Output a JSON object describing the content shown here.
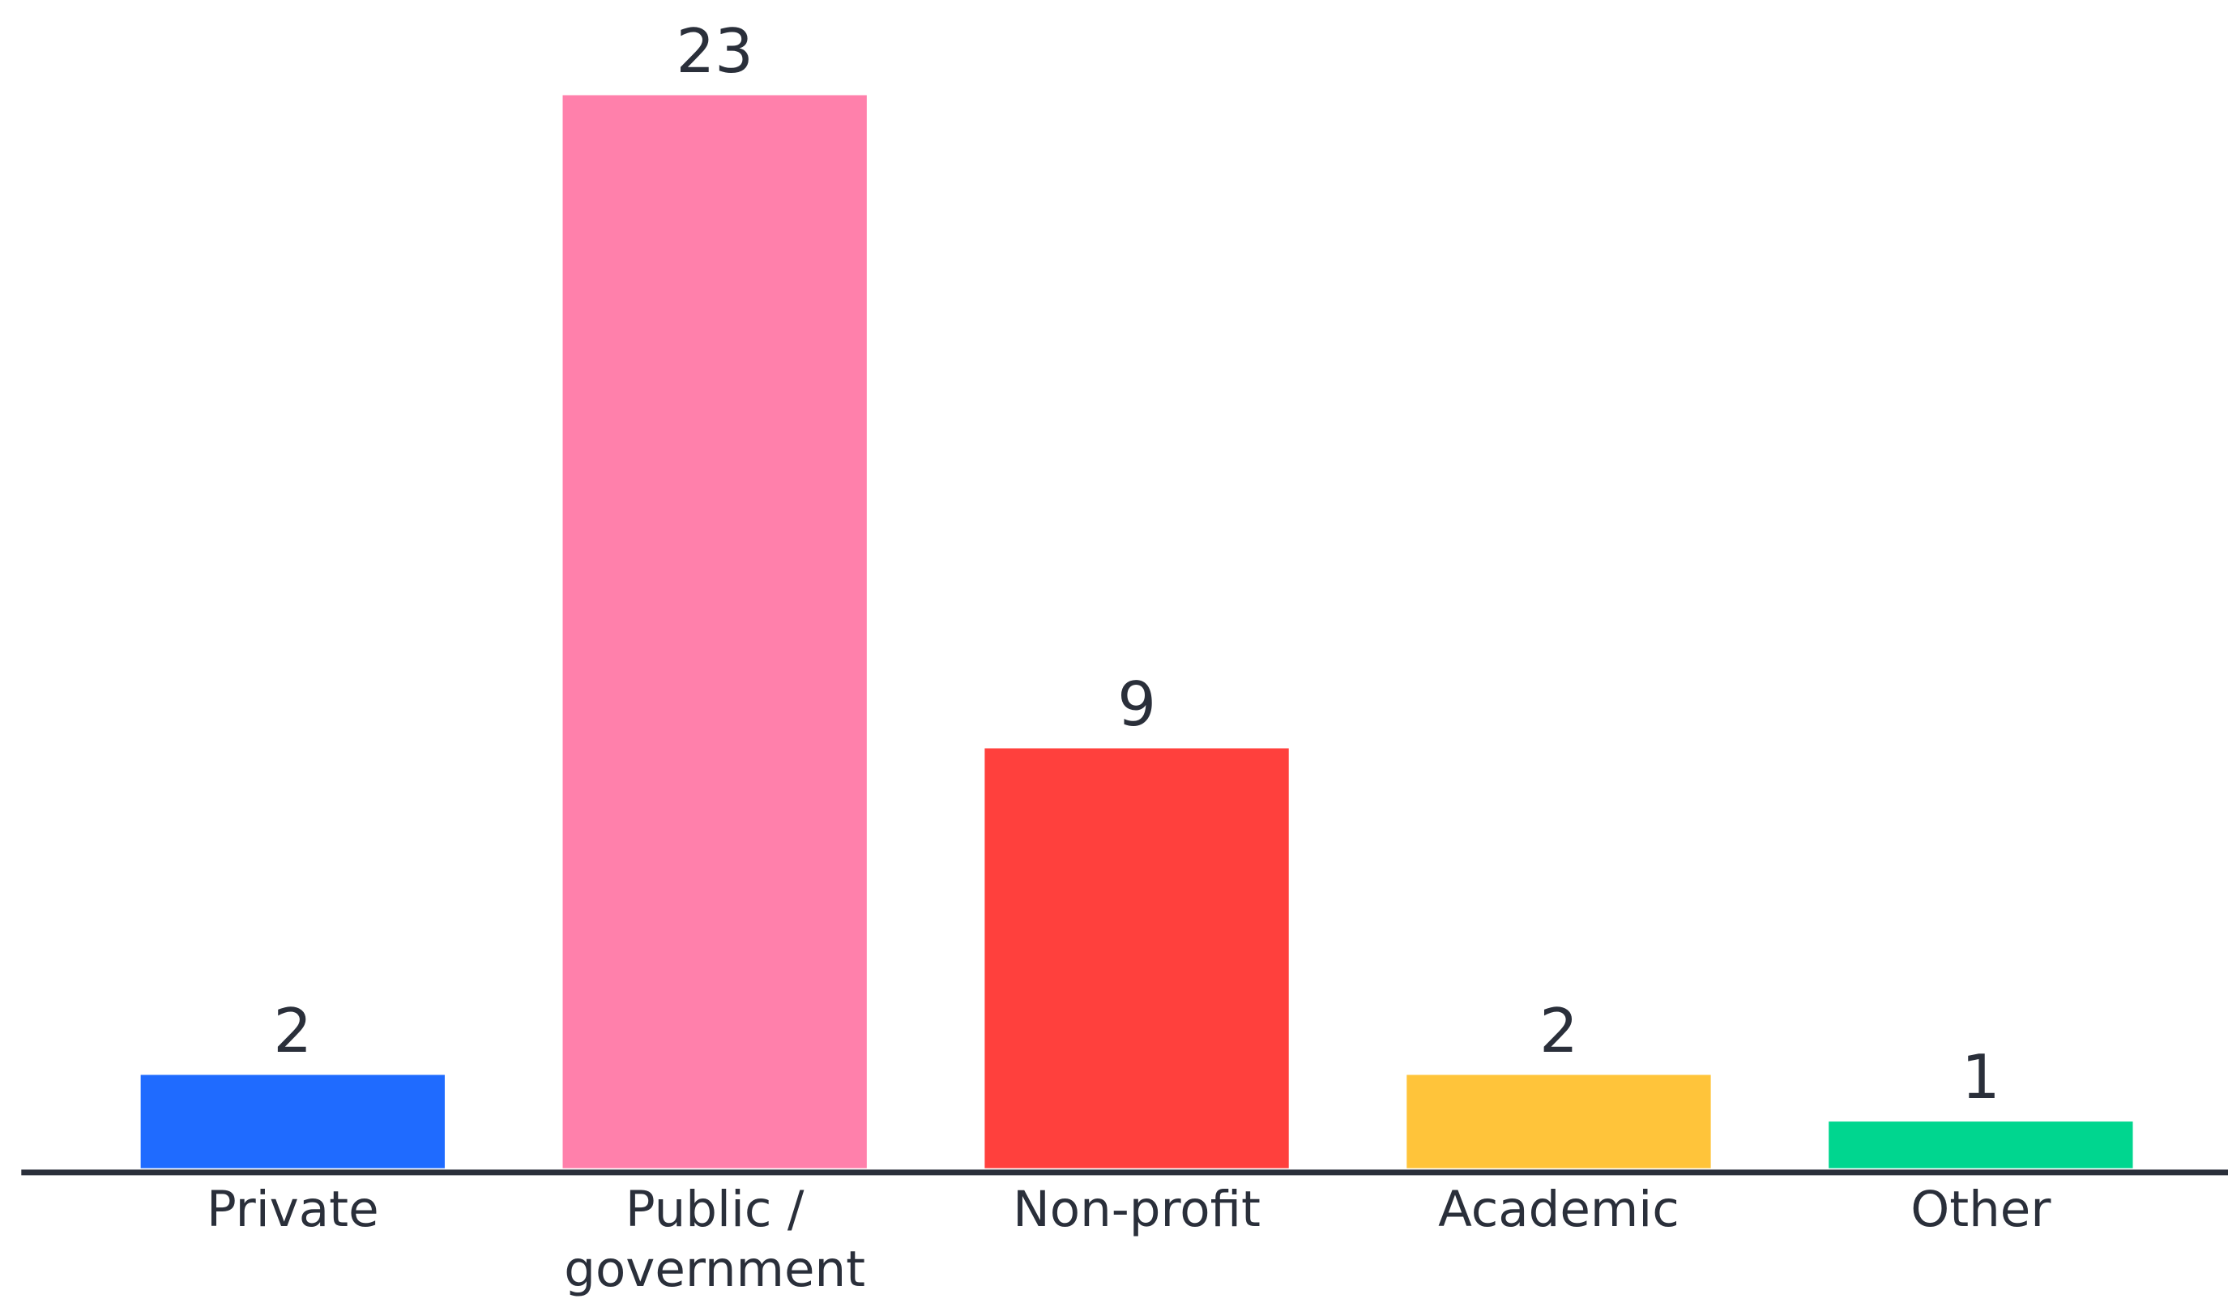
{
  "chart_data": {
    "type": "bar",
    "categories": [
      "Private",
      "Public / government",
      "Non-profit",
      "Academic",
      "Other"
    ],
    "values": [
      2,
      23,
      9,
      2,
      1
    ],
    "colors": [
      "#1f6bff",
      "#ff80ab",
      "#ff403d",
      "#ffc43a",
      "#00d68f"
    ],
    "ylim": [
      0,
      23
    ]
  }
}
